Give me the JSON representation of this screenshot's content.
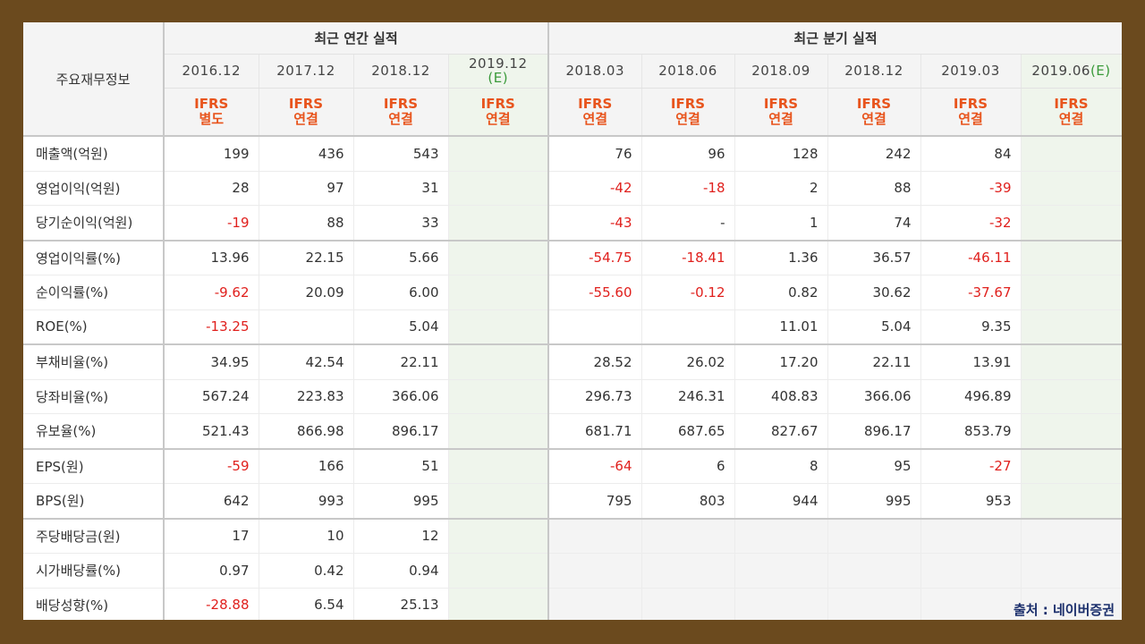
{
  "header": {
    "row_label_title": "주요재무정보",
    "annual_title": "최근 연간 실적",
    "quarter_title": "최근 분기 실적",
    "annual_periods": [
      "2016.12",
      "2017.12",
      "2018.12",
      "2019.12"
    ],
    "annual_est_suffix": "(E)",
    "quarter_periods": [
      "2018.03",
      "2018.06",
      "2018.09",
      "2018.12",
      "2019.03",
      "2019.06"
    ],
    "quarter_est_suffix": "(E)",
    "ifrs_label": "IFRS",
    "ifrs_annual_types": [
      "별도",
      "연결",
      "연결",
      "연결"
    ],
    "ifrs_quarter_types": [
      "연결",
      "연결",
      "연결",
      "연결",
      "연결",
      "연결"
    ]
  },
  "rows": [
    {
      "label": "매출액(억원)",
      "annual": [
        "199",
        "436",
        "543",
        ""
      ],
      "quarter": [
        "76",
        "96",
        "128",
        "242",
        "84",
        ""
      ]
    },
    {
      "label": "영업이익(억원)",
      "annual": [
        "28",
        "97",
        "31",
        ""
      ],
      "quarter": [
        "-42",
        "-18",
        "2",
        "88",
        "-39",
        ""
      ]
    },
    {
      "label": "당기순이익(억원)",
      "annual": [
        "-19",
        "88",
        "33",
        ""
      ],
      "quarter": [
        "-43",
        "-",
        "1",
        "74",
        "-32",
        ""
      ]
    },
    {
      "label": "영업이익률(%)",
      "annual": [
        "13.96",
        "22.15",
        "5.66",
        ""
      ],
      "quarter": [
        "-54.75",
        "-18.41",
        "1.36",
        "36.57",
        "-46.11",
        ""
      ]
    },
    {
      "label": "순이익률(%)",
      "annual": [
        "-9.62",
        "20.09",
        "6.00",
        ""
      ],
      "quarter": [
        "-55.60",
        "-0.12",
        "0.82",
        "30.62",
        "-37.67",
        ""
      ]
    },
    {
      "label": "ROE(%)",
      "annual": [
        "-13.25",
        "",
        "5.04",
        ""
      ],
      "quarter": [
        "",
        "",
        "11.01",
        "5.04",
        "9.35",
        ""
      ]
    },
    {
      "label": "부채비율(%)",
      "annual": [
        "34.95",
        "42.54",
        "22.11",
        ""
      ],
      "quarter": [
        "28.52",
        "26.02",
        "17.20",
        "22.11",
        "13.91",
        ""
      ]
    },
    {
      "label": "당좌비율(%)",
      "annual": [
        "567.24",
        "223.83",
        "366.06",
        ""
      ],
      "quarter": [
        "296.73",
        "246.31",
        "408.83",
        "366.06",
        "496.89",
        ""
      ]
    },
    {
      "label": "유보율(%)",
      "annual": [
        "521.43",
        "866.98",
        "896.17",
        ""
      ],
      "quarter": [
        "681.71",
        "687.65",
        "827.67",
        "896.17",
        "853.79",
        ""
      ]
    },
    {
      "label": "EPS(원)",
      "annual": [
        "-59",
        "166",
        "51",
        ""
      ],
      "quarter": [
        "-64",
        "6",
        "8",
        "95",
        "-27",
        ""
      ]
    },
    {
      "label": "BPS(원)",
      "annual": [
        "642",
        "993",
        "995",
        ""
      ],
      "quarter": [
        "795",
        "803",
        "944",
        "995",
        "953",
        ""
      ]
    },
    {
      "label": "주당배당금(원)",
      "annual": [
        "17",
        "10",
        "12",
        ""
      ],
      "quarter": null
    },
    {
      "label": "시가배당률(%)",
      "annual": [
        "0.97",
        "0.42",
        "0.94",
        ""
      ],
      "quarter": null
    },
    {
      "label": "배당성향(%)",
      "annual": [
        "-28.88",
        "6.54",
        "25.13",
        ""
      ],
      "quarter": null
    }
  ],
  "source_caption": "출처 : 네이버증권",
  "colors": {
    "negative": "#e0201d",
    "ifrs": "#e8541c",
    "estimate_bg": "#eff5ec",
    "frame": "#6b4a1e",
    "caption": "#1a2e6b"
  }
}
